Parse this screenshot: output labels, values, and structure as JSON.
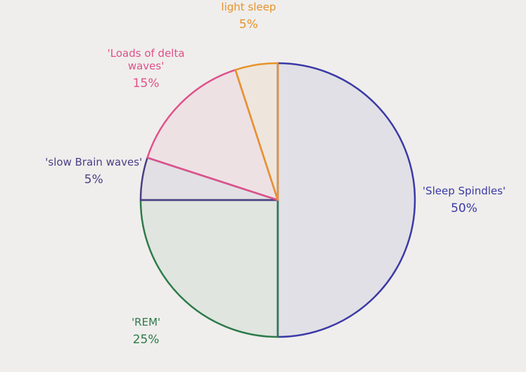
{
  "chart_data": {
    "type": "pie",
    "categories": [
      "'Sleep Spindles'",
      "'REM'",
      "'slow Brain waves'",
      "'Loads of delta waves'",
      "light sleep"
    ],
    "values": [
      50,
      25,
      5,
      15,
      5
    ],
    "value_labels": [
      "50%",
      "25%",
      "5%",
      "15%",
      "5%"
    ],
    "colors": [
      "#3b3aa6",
      "#2e7a4a",
      "#4a3f86",
      "#e0508a",
      "#e8922a"
    ]
  }
}
